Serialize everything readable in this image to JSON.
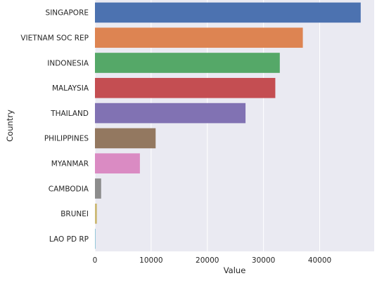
{
  "chart_data": {
    "type": "bar",
    "orientation": "horizontal",
    "xlabel": "Value",
    "ylabel": "Country",
    "categories": [
      "SINGAPORE",
      "VIETNAM SOC REP",
      "INDONESIA",
      "MALAYSIA",
      "THAILAND",
      "PHILIPPINES",
      "MYANMAR",
      "CAMBODIA",
      "BRUNEI",
      "LAO PD RP"
    ],
    "values": [
      47300,
      37000,
      32900,
      32100,
      26800,
      10800,
      8000,
      1100,
      350,
      80
    ],
    "xlim": [
      0,
      49700
    ],
    "xticks": [
      0,
      10000,
      20000,
      30000,
      40000
    ],
    "grid": true,
    "background": "#eaeaf2",
    "gridColor": "#ffffff",
    "colors": [
      "#4c72b0",
      "#dd8452",
      "#55a868",
      "#c44e52",
      "#8172b3",
      "#937860",
      "#da8bc3",
      "#8c8c8c",
      "#ccb974",
      "#64b5cd"
    ]
  }
}
